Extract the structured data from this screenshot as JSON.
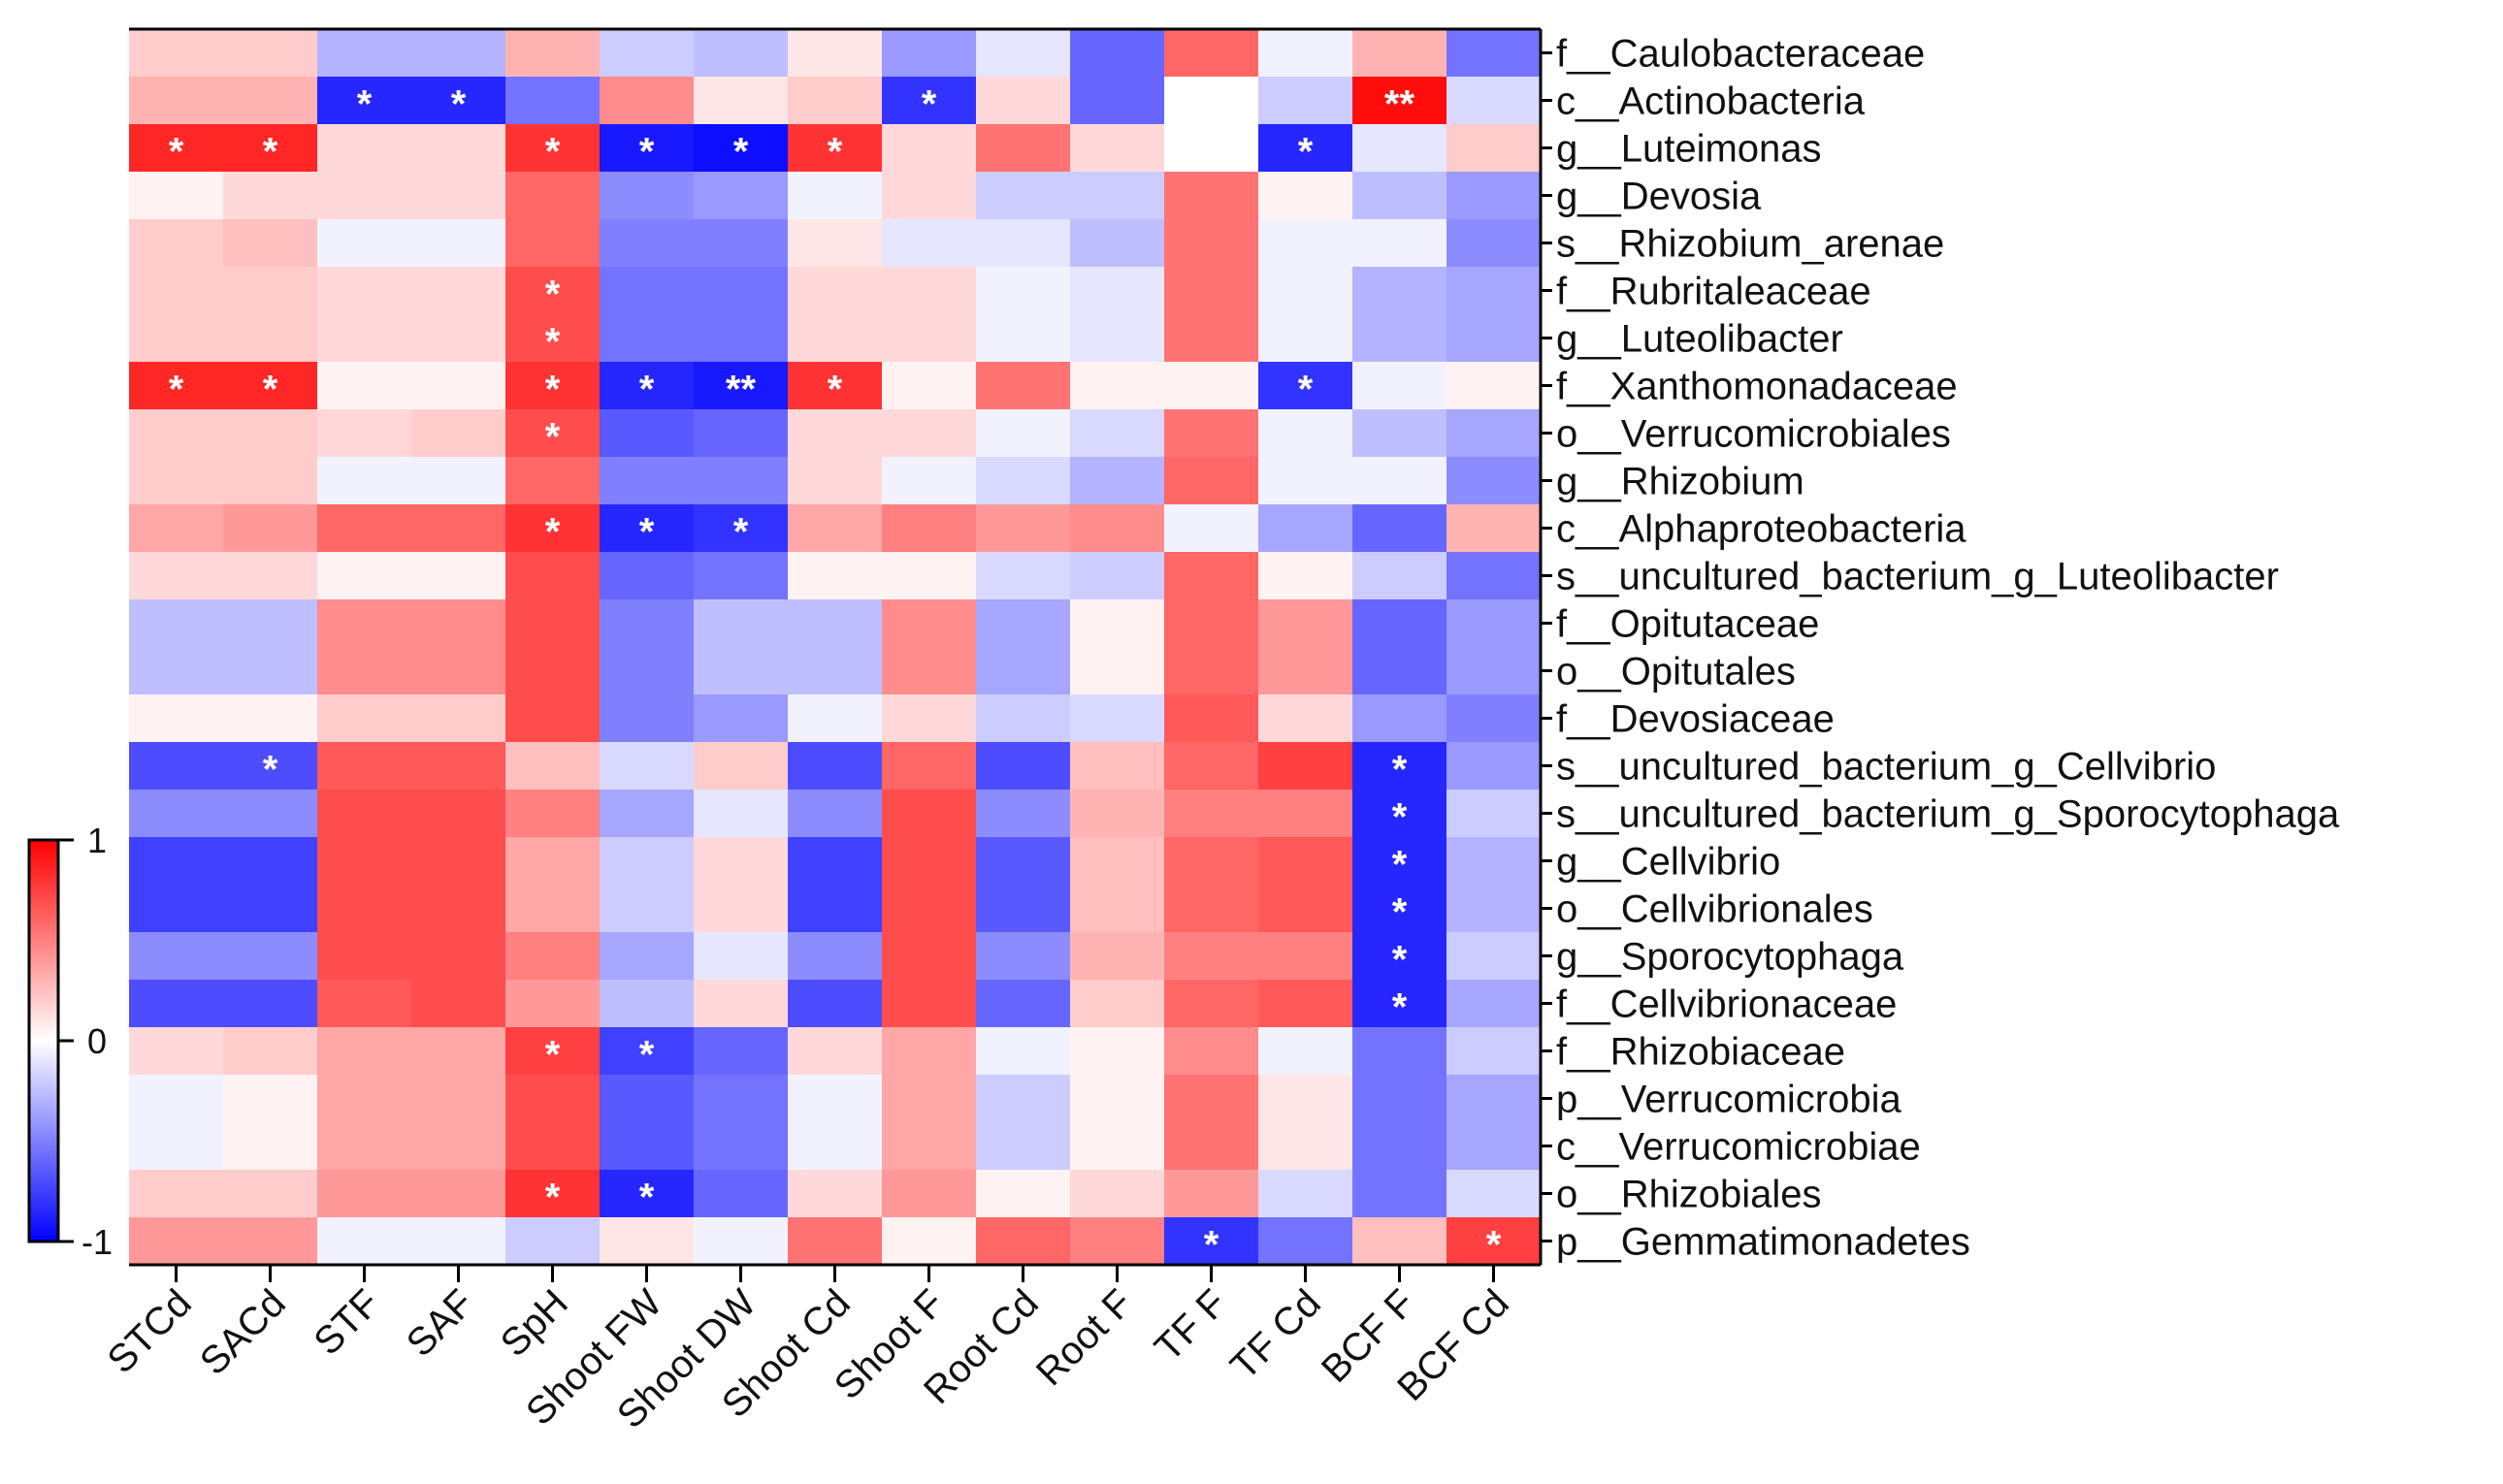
{
  "chart_data": {
    "type": "heatmap",
    "title": "",
    "columns": [
      "STCd",
      "SACd",
      "STF",
      "SAF",
      "SpH",
      "Shoot FW",
      "Shoot DW",
      "Shoot Cd",
      "Shoot F",
      "Root Cd",
      "Root F",
      "TF F",
      "TF Cd",
      "BCF F",
      "BCF Cd"
    ],
    "rows": [
      "f__Caulobacteraceae",
      "c__Actinobacteria",
      "g__Luteimonas",
      "g__Devosia",
      "s__Rhizobium_arenae",
      "f__Rubritaleaceae",
      "g__Luteolibacter",
      "f__Xanthomonadaceae",
      "o__Verrucomicrobiales",
      "g__Rhizobium",
      "c__Alphaproteobacteria",
      "s__uncultured_bacterium_g_Luteolibacter",
      "f__Opitutaceae",
      "o__Opitutales",
      "f__Devosiaceae",
      "s__uncultured_bacterium_g_Cellvibrio",
      "s__uncultured_bacterium_g_Sporocytophaga",
      "g__Cellvibrio",
      "o__Cellvibrionales",
      "g__Sporocytophaga",
      "f__Cellvibrionaceae",
      "f__Rhizobiaceae",
      "p__Verrucomicrobia",
      "c__Verrucomicrobiae",
      "o__Rhizobiales",
      "p__Gemmatimonadetes"
    ],
    "values": [
      [
        0.2,
        0.2,
        -0.3,
        -0.3,
        0.3,
        -0.2,
        -0.25,
        0.1,
        -0.4,
        -0.1,
        -0.6,
        0.6,
        -0.05,
        0.3,
        -0.55
      ],
      [
        0.3,
        0.3,
        -0.85,
        -0.85,
        -0.55,
        0.45,
        0.1,
        0.2,
        -0.8,
        0.15,
        -0.6,
        0.0,
        -0.2,
        0.95,
        -0.15
      ],
      [
        0.85,
        0.85,
        0.15,
        0.15,
        0.8,
        -0.9,
        -0.95,
        0.8,
        0.15,
        0.55,
        0.15,
        0.0,
        -0.85,
        -0.1,
        0.2
      ],
      [
        0.05,
        0.15,
        0.15,
        0.15,
        0.6,
        -0.45,
        -0.4,
        -0.05,
        0.15,
        -0.2,
        -0.2,
        0.55,
        0.05,
        -0.25,
        -0.4
      ],
      [
        0.2,
        0.25,
        -0.05,
        -0.05,
        0.6,
        -0.5,
        -0.5,
        0.1,
        -0.1,
        -0.1,
        -0.25,
        0.55,
        -0.05,
        -0.05,
        -0.45
      ],
      [
        0.2,
        0.2,
        0.15,
        0.15,
        0.7,
        -0.55,
        -0.55,
        0.15,
        0.15,
        -0.05,
        -0.1,
        0.55,
        -0.05,
        -0.3,
        -0.35
      ],
      [
        0.2,
        0.2,
        0.15,
        0.15,
        0.7,
        -0.55,
        -0.55,
        0.15,
        0.15,
        -0.05,
        -0.1,
        0.55,
        -0.05,
        -0.3,
        -0.35
      ],
      [
        0.85,
        0.85,
        0.05,
        0.05,
        0.8,
        -0.85,
        -0.9,
        0.8,
        0.05,
        0.55,
        0.05,
        0.05,
        -0.8,
        -0.05,
        0.05
      ],
      [
        0.2,
        0.2,
        0.15,
        0.2,
        0.7,
        -0.65,
        -0.6,
        0.15,
        0.15,
        -0.05,
        -0.15,
        0.55,
        -0.05,
        -0.25,
        -0.35
      ],
      [
        0.2,
        0.2,
        -0.05,
        -0.05,
        0.6,
        -0.5,
        -0.5,
        0.15,
        -0.05,
        -0.15,
        -0.3,
        0.6,
        -0.05,
        -0.05,
        -0.45
      ],
      [
        0.35,
        0.4,
        0.6,
        0.6,
        0.8,
        -0.85,
        -0.8,
        0.35,
        0.5,
        0.4,
        0.45,
        -0.05,
        -0.35,
        -0.6,
        0.3
      ],
      [
        0.15,
        0.15,
        0.05,
        0.05,
        0.7,
        -0.6,
        -0.55,
        0.05,
        0.05,
        -0.15,
        -0.2,
        0.6,
        0.05,
        -0.2,
        -0.55
      ],
      [
        -0.25,
        -0.25,
        0.45,
        0.45,
        0.7,
        -0.5,
        -0.25,
        -0.25,
        0.45,
        -0.35,
        0.05,
        0.6,
        0.4,
        -0.6,
        -0.4
      ],
      [
        -0.25,
        -0.25,
        0.45,
        0.45,
        0.7,
        -0.5,
        -0.25,
        -0.25,
        0.45,
        -0.35,
        0.05,
        0.6,
        0.4,
        -0.6,
        -0.4
      ],
      [
        0.05,
        0.05,
        0.2,
        0.2,
        0.7,
        -0.5,
        -0.4,
        -0.05,
        0.15,
        -0.2,
        -0.15,
        0.65,
        0.15,
        -0.4,
        -0.5
      ],
      [
        -0.7,
        -0.7,
        0.65,
        0.65,
        0.25,
        -0.15,
        0.2,
        -0.7,
        0.6,
        -0.7,
        0.25,
        0.6,
        0.75,
        -0.85,
        -0.4
      ],
      [
        -0.45,
        -0.45,
        0.7,
        0.7,
        0.5,
        -0.35,
        -0.1,
        -0.45,
        0.7,
        -0.45,
        0.3,
        0.5,
        0.5,
        -0.85,
        -0.2
      ],
      [
        -0.75,
        -0.75,
        0.7,
        0.7,
        0.35,
        -0.2,
        0.15,
        -0.75,
        0.7,
        -0.65,
        0.25,
        0.6,
        0.65,
        -0.85,
        -0.3
      ],
      [
        -0.75,
        -0.75,
        0.7,
        0.7,
        0.35,
        -0.2,
        0.15,
        -0.75,
        0.7,
        -0.65,
        0.25,
        0.6,
        0.65,
        -0.85,
        -0.3
      ],
      [
        -0.45,
        -0.45,
        0.7,
        0.7,
        0.5,
        -0.35,
        -0.1,
        -0.45,
        0.7,
        -0.45,
        0.3,
        0.5,
        0.5,
        -0.85,
        -0.2
      ],
      [
        -0.7,
        -0.7,
        0.65,
        0.7,
        0.4,
        -0.25,
        0.15,
        -0.7,
        0.7,
        -0.6,
        0.2,
        0.6,
        0.65,
        -0.85,
        -0.35
      ],
      [
        0.15,
        0.2,
        0.35,
        0.35,
        0.75,
        -0.75,
        -0.6,
        0.15,
        0.35,
        -0.05,
        0.05,
        0.45,
        -0.05,
        -0.55,
        -0.2
      ],
      [
        -0.05,
        0.05,
        0.35,
        0.35,
        0.7,
        -0.65,
        -0.55,
        -0.05,
        0.35,
        -0.2,
        0.05,
        0.55,
        0.1,
        -0.55,
        -0.35
      ],
      [
        -0.05,
        0.05,
        0.35,
        0.35,
        0.7,
        -0.65,
        -0.55,
        -0.05,
        0.35,
        -0.2,
        0.05,
        0.55,
        0.1,
        -0.55,
        -0.35
      ],
      [
        0.2,
        0.2,
        0.4,
        0.4,
        0.8,
        -0.85,
        -0.6,
        0.15,
        0.4,
        0.05,
        0.15,
        0.4,
        -0.15,
        -0.55,
        -0.15
      ],
      [
        0.4,
        0.4,
        -0.05,
        -0.05,
        -0.2,
        0.1,
        -0.05,
        0.55,
        0.05,
        0.6,
        0.5,
        -0.8,
        -0.55,
        0.25,
        0.75
      ]
    ],
    "significance": [
      [
        "",
        "",
        "",
        "",
        "",
        "",
        "",
        "",
        "",
        "",
        "",
        "",
        "",
        "",
        ""
      ],
      [
        "",
        "",
        "*",
        "*",
        "",
        "",
        "",
        "",
        "*",
        "",
        "",
        "",
        "",
        "**",
        ""
      ],
      [
        "*",
        "*",
        "",
        "",
        "*",
        "*",
        "*",
        "*",
        "",
        "",
        "",
        "",
        "*",
        "",
        ""
      ],
      [
        "",
        "",
        "",
        "",
        "",
        "",
        "",
        "",
        "",
        "",
        "",
        "",
        "",
        "",
        ""
      ],
      [
        "",
        "",
        "",
        "",
        "",
        "",
        "",
        "",
        "",
        "",
        "",
        "",
        "",
        "",
        ""
      ],
      [
        "",
        "",
        "",
        "",
        "*",
        "",
        "",
        "",
        "",
        "",
        "",
        "",
        "",
        "",
        ""
      ],
      [
        "",
        "",
        "",
        "",
        "*",
        "",
        "",
        "",
        "",
        "",
        "",
        "",
        "",
        "",
        ""
      ],
      [
        "*",
        "*",
        "",
        "",
        "*",
        "*",
        "**",
        "*",
        "",
        "",
        "",
        "",
        "*",
        "",
        ""
      ],
      [
        "",
        "",
        "",
        "",
        "*",
        "",
        "",
        "",
        "",
        "",
        "",
        "",
        "",
        "",
        ""
      ],
      [
        "",
        "",
        "",
        "",
        "",
        "",
        "",
        "",
        "",
        "",
        "",
        "",
        "",
        "",
        ""
      ],
      [
        "",
        "",
        "",
        "",
        "*",
        "*",
        "*",
        "",
        "",
        "",
        "",
        "",
        "",
        "",
        ""
      ],
      [
        "",
        "",
        "",
        "",
        "",
        "",
        "",
        "",
        "",
        "",
        "",
        "",
        "",
        "",
        ""
      ],
      [
        "",
        "",
        "",
        "",
        "",
        "",
        "",
        "",
        "",
        "",
        "",
        "",
        "",
        "",
        ""
      ],
      [
        "",
        "",
        "",
        "",
        "",
        "",
        "",
        "",
        "",
        "",
        "",
        "",
        "",
        "",
        ""
      ],
      [
        "",
        "",
        "",
        "",
        "",
        "",
        "",
        "",
        "",
        "",
        "",
        "",
        "",
        "",
        ""
      ],
      [
        "",
        "*",
        "",
        "",
        "",
        "",
        "",
        "",
        "",
        "",
        "",
        "",
        "",
        "*",
        ""
      ],
      [
        "",
        "",
        "",
        "",
        "",
        "",
        "",
        "",
        "",
        "",
        "",
        "",
        "",
        "*",
        ""
      ],
      [
        "",
        "",
        "",
        "",
        "",
        "",
        "",
        "",
        "",
        "",
        "",
        "",
        "",
        "*",
        ""
      ],
      [
        "",
        "",
        "",
        "",
        "",
        "",
        "",
        "",
        "",
        "",
        "",
        "",
        "",
        "*",
        ""
      ],
      [
        "",
        "",
        "",
        "",
        "",
        "",
        "",
        "",
        "",
        "",
        "",
        "",
        "",
        "*",
        ""
      ],
      [
        "",
        "",
        "",
        "",
        "",
        "",
        "",
        "",
        "",
        "",
        "",
        "",
        "",
        "*",
        ""
      ],
      [
        "",
        "",
        "",
        "",
        "*",
        "*",
        "",
        "",
        "",
        "",
        "",
        "",
        "",
        "",
        ""
      ],
      [
        "",
        "",
        "",
        "",
        "",
        "",
        "",
        "",
        "",
        "",
        "",
        "",
        "",
        "",
        ""
      ],
      [
        "",
        "",
        "",
        "",
        "",
        "",
        "",
        "",
        "",
        "",
        "",
        "",
        "",
        "",
        ""
      ],
      [
        "",
        "",
        "",
        "",
        "*",
        "*",
        "",
        "",
        "",
        "",
        "",
        "",
        "",
        "",
        ""
      ],
      [
        "",
        "",
        "",
        "",
        "",
        "",
        "",
        "",
        "",
        "",
        "",
        "*",
        "",
        "",
        "*"
      ]
    ],
    "colorbar": {
      "range": [
        -1,
        1
      ],
      "ticks": [
        {
          "value": 1,
          "label": "1"
        },
        {
          "value": 0,
          "label": "0"
        },
        {
          "value": -1,
          "label": "-1"
        }
      ],
      "low_color": "#0000ff",
      "mid_color": "#ffffff",
      "high_color": "#ff0000"
    }
  }
}
